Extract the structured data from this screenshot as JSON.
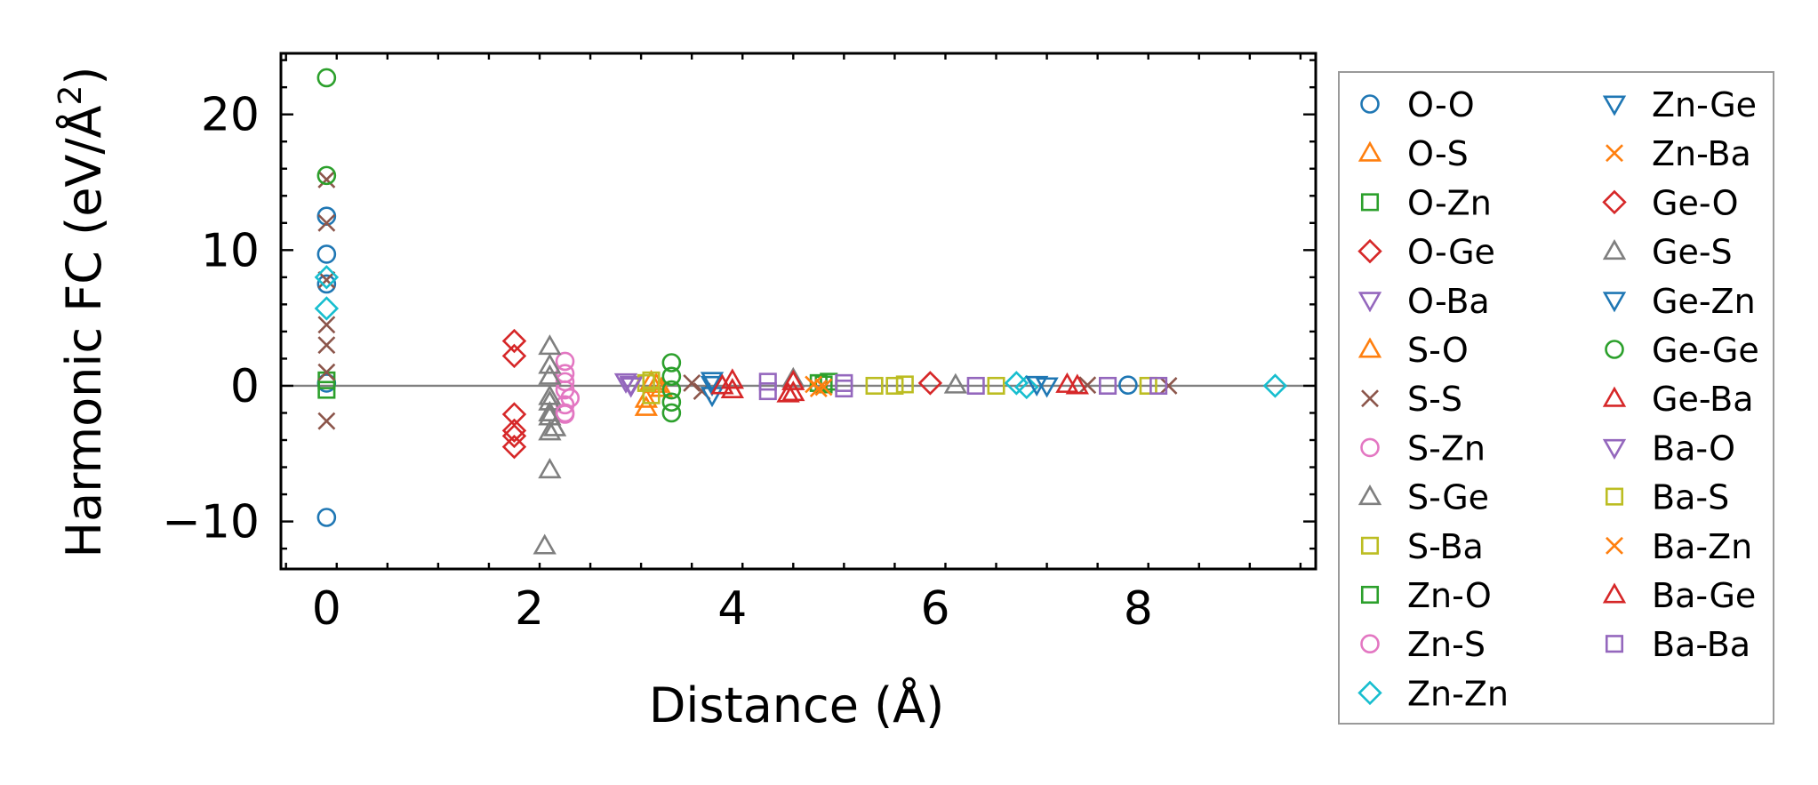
{
  "chart_data": {
    "type": "scatter",
    "title": "",
    "xlabel": "Distance (Å)",
    "ylabel_main": "Harmonic FC (eV/Å",
    "ylabel_sup": "2",
    "ylabel_close": ")",
    "xlim": [
      -0.45,
      9.75
    ],
    "ylim": [
      -13.5,
      24.5
    ],
    "xticks": [
      0,
      2,
      4,
      6,
      8
    ],
    "xtick_labels": [
      "0",
      "2",
      "4",
      "6",
      "8"
    ],
    "yticks": [
      -10,
      0,
      10,
      20
    ],
    "ytick_labels": [
      "−10",
      "0",
      "10",
      "20"
    ],
    "reference_line_y": 0,
    "grid": false,
    "legend_position": "right",
    "series": [
      {
        "name": "O-O",
        "marker": "circle",
        "color": "#1f77b4",
        "points": [
          [
            0,
            12.5
          ],
          [
            0,
            9.7
          ],
          [
            0,
            7.5
          ],
          [
            0,
            -9.7
          ],
          [
            0,
            0.2
          ],
          [
            7.9,
            0.05
          ]
        ]
      },
      {
        "name": "O-S",
        "marker": "triangle-up",
        "color": "#ff7f0e",
        "points": [
          [
            3.15,
            -1.6
          ],
          [
            3.2,
            0.3
          ],
          [
            3.3,
            -0.2
          ]
        ]
      },
      {
        "name": "O-Zn",
        "marker": "square",
        "color": "#2ca02c",
        "points": [
          [
            0,
            0.4
          ],
          [
            4.9,
            0.1
          ],
          [
            4.95,
            0.3
          ]
        ]
      },
      {
        "name": "O-Ge",
        "marker": "diamond",
        "color": "#d62728",
        "points": [
          [
            1.85,
            3.3
          ],
          [
            1.85,
            2.2
          ],
          [
            5.95,
            0.2
          ]
        ]
      },
      {
        "name": "O-Ba",
        "marker": "triangle-down",
        "color": "#9467bd",
        "points": [
          [
            2.95,
            0.3
          ],
          [
            3.0,
            0.1
          ]
        ]
      },
      {
        "name": "S-O",
        "marker": "triangle-up",
        "color": "#ff7f0e",
        "points": [
          [
            3.15,
            -1.0
          ],
          [
            3.25,
            0.1
          ]
        ]
      },
      {
        "name": "S-S",
        "marker": "x",
        "color": "#8c564b",
        "points": [
          [
            0,
            15.2
          ],
          [
            0,
            12.0
          ],
          [
            0,
            7.8
          ],
          [
            0,
            4.5
          ],
          [
            0,
            3.0
          ],
          [
            0,
            1.0
          ],
          [
            0,
            -2.6
          ],
          [
            3.6,
            0.2
          ],
          [
            3.7,
            -0.4
          ],
          [
            7.5,
            0.05
          ],
          [
            8.3,
            0.0
          ]
        ]
      },
      {
        "name": "S-Zn",
        "marker": "circle",
        "color": "#e377c2",
        "points": [
          [
            2.35,
            1.8
          ],
          [
            2.35,
            0.9
          ],
          [
            2.35,
            -0.3
          ],
          [
            2.35,
            -1.4
          ],
          [
            2.35,
            -2.1
          ],
          [
            2.35,
            0.3
          ]
        ]
      },
      {
        "name": "S-Ge",
        "marker": "triangle-up",
        "color": "#7f7f7f",
        "points": [
          [
            2.2,
            2.9
          ],
          [
            2.2,
            1.5
          ],
          [
            2.2,
            0.7
          ],
          [
            2.2,
            -0.8
          ],
          [
            2.2,
            -2.0
          ],
          [
            2.2,
            -3.4
          ],
          [
            2.2,
            -6.2
          ],
          [
            2.15,
            -11.8
          ],
          [
            2.2,
            -1.2
          ],
          [
            6.2,
            0.05
          ]
        ]
      },
      {
        "name": "S-Ba",
        "marker": "square",
        "color": "#bcbd22",
        "points": [
          [
            3.15,
            0.2
          ],
          [
            3.2,
            -0.7
          ],
          [
            5.6,
            0.0
          ],
          [
            5.7,
            0.1
          ],
          [
            6.6,
            0.0
          ]
        ]
      },
      {
        "name": "Zn-O",
        "marker": "square",
        "color": "#2ca02c",
        "points": [
          [
            0,
            -0.3
          ],
          [
            4.85,
            0.2
          ]
        ]
      },
      {
        "name": "Zn-S",
        "marker": "circle",
        "color": "#e377c2",
        "points": [
          [
            2.4,
            -0.9
          ],
          [
            2.35,
            -2.0
          ]
        ]
      },
      {
        "name": "Zn-Zn",
        "marker": "diamond",
        "color": "#17becf",
        "points": [
          [
            0,
            8.0
          ],
          [
            0,
            5.7
          ],
          [
            6.8,
            0.2
          ],
          [
            6.9,
            -0.1
          ],
          [
            9.35,
            0.0
          ]
        ]
      },
      {
        "name": "Zn-Ge",
        "marker": "triangle-down",
        "color": "#1f77b4",
        "points": [
          [
            3.8,
            0.4
          ],
          [
            3.8,
            -0.7
          ],
          [
            7.0,
            0.1
          ]
        ]
      },
      {
        "name": "Zn-Ba",
        "marker": "x",
        "color": "#ff7f0e",
        "points": [
          [
            4.8,
            0.1
          ],
          [
            4.85,
            -0.2
          ]
        ]
      },
      {
        "name": "Ge-O",
        "marker": "diamond",
        "color": "#d62728",
        "points": [
          [
            1.85,
            -2.1
          ],
          [
            1.85,
            -3.3
          ],
          [
            1.85,
            -4.5
          ],
          [
            1.85,
            -3.7
          ]
        ]
      },
      {
        "name": "Ge-S",
        "marker": "triangle-up",
        "color": "#7f7f7f",
        "points": [
          [
            2.25,
            -3.1
          ],
          [
            2.2,
            -2.3
          ],
          [
            4.6,
            0.5
          ]
        ]
      },
      {
        "name": "Ge-Zn",
        "marker": "triangle-down",
        "color": "#1f77b4",
        "points": [
          [
            3.8,
            0.1
          ],
          [
            7.1,
            0.0
          ]
        ]
      },
      {
        "name": "Ge-Ge",
        "marker": "circle",
        "color": "#2ca02c",
        "points": [
          [
            0,
            22.7
          ],
          [
            0,
            15.5
          ],
          [
            3.4,
            1.7
          ],
          [
            3.4,
            0.7
          ],
          [
            3.4,
            -0.3
          ],
          [
            3.4,
            -1.2
          ],
          [
            3.4,
            -2.0
          ]
        ]
      },
      {
        "name": "Ge-Ba",
        "marker": "triangle-up",
        "color": "#d62728",
        "points": [
          [
            4.0,
            0.4
          ],
          [
            4.0,
            -0.3
          ],
          [
            4.6,
            0.3
          ],
          [
            4.6,
            -0.5
          ],
          [
            7.3,
            0.1
          ]
        ]
      },
      {
        "name": "Ba-O",
        "marker": "triangle-down",
        "color": "#9467bd",
        "points": [
          [
            3.0,
            0.0
          ]
        ]
      },
      {
        "name": "Ba-S",
        "marker": "square",
        "color": "#bcbd22",
        "points": [
          [
            3.2,
            0.4
          ],
          [
            5.4,
            0.0
          ],
          [
            8.1,
            0.0
          ]
        ]
      },
      {
        "name": "Ba-Zn",
        "marker": "x",
        "color": "#ff7f0e",
        "points": [
          [
            4.9,
            -0.1
          ]
        ]
      },
      {
        "name": "Ba-Ge",
        "marker": "triangle-up",
        "color": "#d62728",
        "points": [
          [
            3.9,
            0.0
          ],
          [
            4.55,
            -0.6
          ],
          [
            7.4,
            0.0
          ]
        ]
      },
      {
        "name": "Ba-Ba",
        "marker": "square",
        "color": "#9467bd",
        "points": [
          [
            4.35,
            0.3
          ],
          [
            4.35,
            -0.4
          ],
          [
            5.1,
            0.2
          ],
          [
            5.1,
            -0.2
          ],
          [
            6.4,
            0.0
          ],
          [
            7.7,
            0.0
          ],
          [
            8.2,
            0.0
          ]
        ]
      }
    ]
  }
}
